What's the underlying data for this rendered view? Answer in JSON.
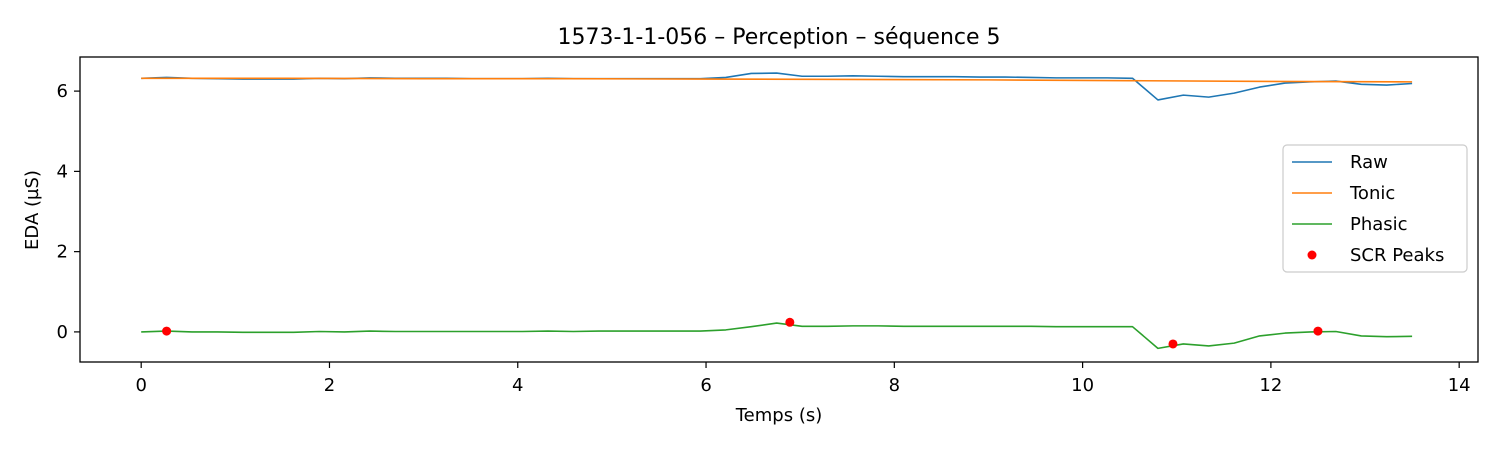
{
  "chart_data": {
    "type": "line",
    "title": "1573-1-1-056 – Perception – séquence 5",
    "xlabel": "Temps (s)",
    "ylabel": "EDA (µS)",
    "xlim": [
      -0.65,
      14.2
    ],
    "ylim": [
      -0.75,
      6.85
    ],
    "xticks": [
      0,
      2,
      4,
      6,
      8,
      10,
      12,
      14
    ],
    "yticks": [
      0,
      2,
      4,
      6
    ],
    "grid": false,
    "legend_position": "center-right",
    "series": [
      {
        "name": "Raw",
        "color": "#1f77b4",
        "x": [
          0,
          0.27,
          0.54,
          0.81,
          1.08,
          1.35,
          1.62,
          1.89,
          2.16,
          2.43,
          2.7,
          2.97,
          3.24,
          3.51,
          3.78,
          4.05,
          4.32,
          4.59,
          4.86,
          5.13,
          5.4,
          5.67,
          5.94,
          6.21,
          6.48,
          6.75,
          7.02,
          7.29,
          7.56,
          7.83,
          8.1,
          8.37,
          8.64,
          8.91,
          9.18,
          9.45,
          9.72,
          9.99,
          10.26,
          10.53,
          10.8,
          11.07,
          11.34,
          11.61,
          11.88,
          12.15,
          12.42,
          12.69,
          12.96,
          13.23,
          13.5
        ],
        "y": [
          6.32,
          6.34,
          6.32,
          6.31,
          6.3,
          6.3,
          6.3,
          6.32,
          6.31,
          6.33,
          6.32,
          6.32,
          6.32,
          6.31,
          6.31,
          6.31,
          6.32,
          6.31,
          6.31,
          6.31,
          6.31,
          6.31,
          6.31,
          6.34,
          6.44,
          6.45,
          6.37,
          6.37,
          6.38,
          6.37,
          6.36,
          6.36,
          6.36,
          6.35,
          6.35,
          6.34,
          6.33,
          6.33,
          6.33,
          6.32,
          5.78,
          5.9,
          5.85,
          5.95,
          6.1,
          6.2,
          6.23,
          6.25,
          6.17,
          6.15,
          6.19
        ]
      },
      {
        "name": "Tonic",
        "color": "#ff7f0e",
        "x": [
          0,
          1.5,
          3,
          4.5,
          6,
          7.5,
          9,
          10.5,
          12,
          13.5
        ],
        "y": [
          6.32,
          6.32,
          6.31,
          6.31,
          6.3,
          6.29,
          6.28,
          6.26,
          6.24,
          6.23
        ]
      },
      {
        "name": "Phasic",
        "color": "#2ca02c",
        "x": [
          0,
          0.27,
          0.54,
          0.81,
          1.08,
          1.35,
          1.62,
          1.89,
          2.16,
          2.43,
          2.7,
          2.97,
          3.24,
          3.51,
          3.78,
          4.05,
          4.32,
          4.59,
          4.86,
          5.13,
          5.4,
          5.67,
          5.94,
          6.21,
          6.48,
          6.75,
          7.02,
          7.29,
          7.56,
          7.83,
          8.1,
          8.37,
          8.64,
          8.91,
          9.18,
          9.45,
          9.72,
          9.99,
          10.26,
          10.53,
          10.8,
          11.07,
          11.34,
          11.61,
          11.88,
          12.15,
          12.42,
          12.69,
          12.96,
          13.23,
          13.5
        ],
        "y": [
          0.0,
          0.02,
          0.0,
          0.0,
          -0.01,
          -0.01,
          -0.01,
          0.01,
          0.0,
          0.02,
          0.01,
          0.01,
          0.01,
          0.01,
          0.01,
          0.01,
          0.02,
          0.01,
          0.02,
          0.02,
          0.02,
          0.02,
          0.02,
          0.05,
          0.13,
          0.22,
          0.14,
          0.14,
          0.15,
          0.15,
          0.14,
          0.14,
          0.14,
          0.14,
          0.14,
          0.14,
          0.13,
          0.13,
          0.13,
          0.13,
          -0.41,
          -0.3,
          -0.35,
          -0.28,
          -0.1,
          -0.03,
          0.0,
          0.01,
          -0.1,
          -0.12,
          -0.11
        ]
      }
    ],
    "peaks": {
      "name": "SCR Peaks",
      "color": "#ff0000",
      "x": [
        0.27,
        6.89,
        10.96,
        12.5
      ],
      "y": [
        0.02,
        0.24,
        -0.3,
        0.02
      ]
    }
  }
}
